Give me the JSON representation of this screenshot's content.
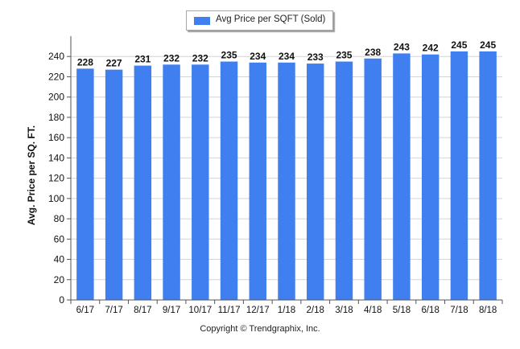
{
  "chart_data": {
    "type": "bar",
    "categories": [
      "6/17",
      "7/17",
      "8/17",
      "9/17",
      "10/17",
      "11/17",
      "12/17",
      "1/18",
      "2/18",
      "3/18",
      "4/18",
      "5/18",
      "6/18",
      "7/18",
      "8/18"
    ],
    "series": [
      {
        "name": "Avg Price per SQFT (Sold)",
        "values": [
          228,
          227,
          231,
          232,
          232,
          235,
          234,
          234,
          233,
          235,
          238,
          243,
          242,
          245,
          245
        ]
      }
    ],
    "xlabel": "",
    "ylabel": "Avg. Price per SQ. FT.",
    "ylim": [
      0,
      260
    ],
    "yticks": [
      0,
      20,
      40,
      60,
      80,
      100,
      120,
      140,
      160,
      180,
      200,
      220,
      240
    ],
    "grid": true,
    "legend_position": "top-center",
    "colors": {
      "bar": "#3f7fef",
      "grid": "#d4d4d4",
      "axis": "#555555"
    }
  },
  "footer": {
    "copyright": "Copyright © Trendgraphix, Inc."
  }
}
